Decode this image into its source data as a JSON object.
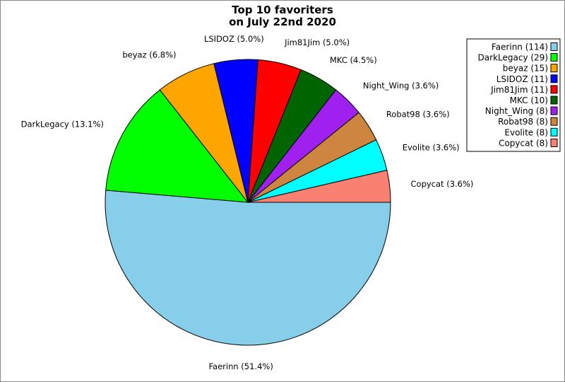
{
  "chart_data": {
    "type": "pie",
    "title_lines": [
      "Top 10 favoriters",
      "on July 22nd 2020"
    ],
    "start_angle_deg": 0,
    "direction": "clockwise",
    "slices": [
      {
        "name": "Faerinn",
        "count": 114,
        "percent": 51.4,
        "color": "#87ceeb",
        "slice_label": "Faerinn (51.4%)",
        "legend_label": "Faerinn (114)"
      },
      {
        "name": "DarkLegacy",
        "count": 29,
        "percent": 13.1,
        "color": "#00ff00",
        "slice_label": "DarkLegacy (13.1%)",
        "legend_label": "DarkLegacy (29)"
      },
      {
        "name": "beyaz",
        "count": 15,
        "percent": 6.8,
        "color": "#ffa500",
        "slice_label": "beyaz (6.8%)",
        "legend_label": "beyaz (15)"
      },
      {
        "name": "LSIDOZ",
        "count": 11,
        "percent": 5.0,
        "color": "#0000ff",
        "slice_label": "LSIDOZ (5.0%)",
        "legend_label": "LSIDOZ (11)"
      },
      {
        "name": "Jim81Jim",
        "count": 11,
        "percent": 5.0,
        "color": "#ff0000",
        "slice_label": "Jim81Jim (5.0%)",
        "legend_label": "Jim81Jim (11)"
      },
      {
        "name": "MKC",
        "count": 10,
        "percent": 4.5,
        "color": "#006400",
        "slice_label": "MKC (4.5%)",
        "legend_label": "MKC (10)"
      },
      {
        "name": "Night_Wing",
        "count": 8,
        "percent": 3.6,
        "color": "#a020f0",
        "slice_label": "Night_Wing (3.6%)",
        "legend_label": "Night_Wing (8)"
      },
      {
        "name": "Robat98",
        "count": 8,
        "percent": 3.6,
        "color": "#cd853f",
        "slice_label": "Robat98 (3.6%)",
        "legend_label": "Robat98 (8)"
      },
      {
        "name": "Evolite",
        "count": 8,
        "percent": 3.6,
        "color": "#00ffff",
        "slice_label": "Evolite (3.6%)",
        "legend_label": "Evolite (8)"
      },
      {
        "name": "Copycat",
        "count": 8,
        "percent": 3.6,
        "color": "#fa8072",
        "slice_label": "Copycat (3.6%)",
        "legend_label": "Copycat (8)"
      }
    ],
    "legend_position": "top-right"
  }
}
